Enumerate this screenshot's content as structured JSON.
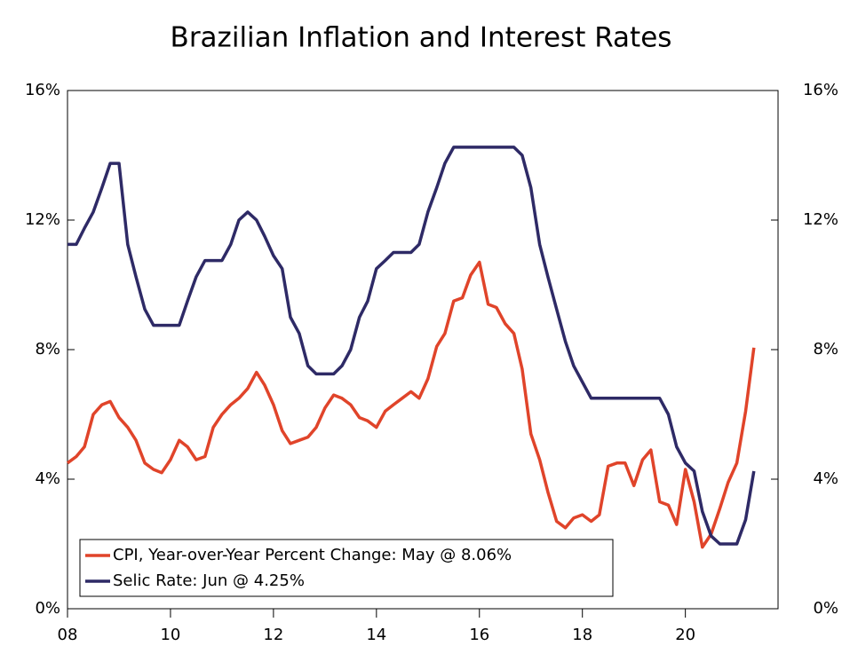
{
  "chart_data": {
    "type": "line",
    "title": "Brazilian Inflation and Interest Rates",
    "x": [
      2008.0,
      2008.17,
      2008.33,
      2008.5,
      2008.67,
      2008.83,
      2009.0,
      2009.17,
      2009.33,
      2009.5,
      2009.67,
      2009.83,
      2010.0,
      2010.17,
      2010.33,
      2010.5,
      2010.67,
      2010.83,
      2011.0,
      2011.17,
      2011.33,
      2011.5,
      2011.67,
      2011.83,
      2012.0,
      2012.17,
      2012.33,
      2012.5,
      2012.67,
      2012.83,
      2013.0,
      2013.17,
      2013.33,
      2013.5,
      2013.67,
      2013.83,
      2014.0,
      2014.17,
      2014.33,
      2014.5,
      2014.67,
      2014.83,
      2015.0,
      2015.17,
      2015.33,
      2015.5,
      2015.67,
      2015.83,
      2016.0,
      2016.17,
      2016.33,
      2016.5,
      2016.67,
      2016.83,
      2017.0,
      2017.17,
      2017.33,
      2017.5,
      2017.67,
      2017.83,
      2018.0,
      2018.17,
      2018.33,
      2018.5,
      2018.67,
      2018.83,
      2019.0,
      2019.17,
      2019.33,
      2019.5,
      2019.67,
      2019.83,
      2020.0,
      2020.17,
      2020.33,
      2020.5,
      2020.67,
      2020.83,
      2021.0,
      2021.17,
      2021.33
    ],
    "series": [
      {
        "name": "CPI, Year-over-Year Percent Change: May @ 8.06%",
        "color": "#e0442a",
        "values": [
          4.5,
          4.7,
          5.0,
          6.0,
          6.3,
          6.4,
          5.9,
          5.6,
          5.2,
          4.5,
          4.3,
          4.2,
          4.6,
          5.2,
          5.0,
          4.6,
          4.7,
          5.6,
          6.0,
          6.3,
          6.5,
          6.8,
          7.3,
          6.9,
          6.3,
          5.5,
          5.1,
          5.2,
          5.3,
          5.6,
          6.2,
          6.6,
          6.5,
          6.3,
          5.9,
          5.8,
          5.6,
          6.1,
          6.3,
          6.5,
          6.7,
          6.5,
          7.1,
          8.1,
          8.5,
          9.5,
          9.6,
          10.3,
          10.7,
          9.4,
          9.3,
          8.8,
          8.5,
          7.4,
          5.4,
          4.6,
          3.6,
          2.7,
          2.5,
          2.8,
          2.9,
          2.7,
          2.9,
          4.4,
          4.5,
          4.5,
          3.8,
          4.6,
          4.9,
          3.3,
          3.2,
          2.6,
          4.3,
          3.3,
          1.9,
          2.3,
          3.1,
          3.9,
          4.5,
          6.1,
          8.06
        ]
      },
      {
        "name": "Selic Rate: Jun @ 4.25%",
        "color": "#2e2a66",
        "axis": "y2",
        "values": [
          11.25,
          11.25,
          11.75,
          12.25,
          13.0,
          13.75,
          13.75,
          11.25,
          10.25,
          9.25,
          8.75,
          8.75,
          8.75,
          8.75,
          9.5,
          10.25,
          10.75,
          10.75,
          10.75,
          11.25,
          12.0,
          12.25,
          12.0,
          11.5,
          10.9,
          10.5,
          9.0,
          8.5,
          7.5,
          7.25,
          7.25,
          7.25,
          7.5,
          8.0,
          9.0,
          9.5,
          10.5,
          10.75,
          11.0,
          11.0,
          11.0,
          11.25,
          12.25,
          13.0,
          13.75,
          14.25,
          14.25,
          14.25,
          14.25,
          14.25,
          14.25,
          14.25,
          14.25,
          14.0,
          13.0,
          11.25,
          10.25,
          9.25,
          8.25,
          7.5,
          7.0,
          6.5,
          6.5,
          6.5,
          6.5,
          6.5,
          6.5,
          6.5,
          6.5,
          6.5,
          6.0,
          5.0,
          4.5,
          4.25,
          3.0,
          2.25,
          2.0,
          2.0,
          2.0,
          2.75,
          4.25
        ]
      }
    ],
    "xlim": [
      2008,
      2021.8
    ],
    "xticks": [
      {
        "value": 2008,
        "label": "08"
      },
      {
        "value": 2010,
        "label": "10"
      },
      {
        "value": 2012,
        "label": "12"
      },
      {
        "value": 2014,
        "label": "14"
      },
      {
        "value": 2016,
        "label": "16"
      },
      {
        "value": 2018,
        "label": "18"
      },
      {
        "value": 2020,
        "label": "20"
      }
    ],
    "ylim": [
      0,
      16
    ],
    "yticks": [
      {
        "value": 0,
        "label": "0%"
      },
      {
        "value": 4,
        "label": "4%"
      },
      {
        "value": 8,
        "label": "8%"
      },
      {
        "value": 12,
        "label": "12%"
      },
      {
        "value": 16,
        "label": "16%"
      }
    ],
    "y2lim": [
      0,
      16
    ],
    "y2ticks": [
      {
        "value": 0,
        "label": "0%"
      },
      {
        "value": 4,
        "label": "4%"
      },
      {
        "value": 8,
        "label": "8%"
      },
      {
        "value": 12,
        "label": "12%"
      },
      {
        "value": 16,
        "label": "16%"
      }
    ],
    "legend": "lower left"
  }
}
